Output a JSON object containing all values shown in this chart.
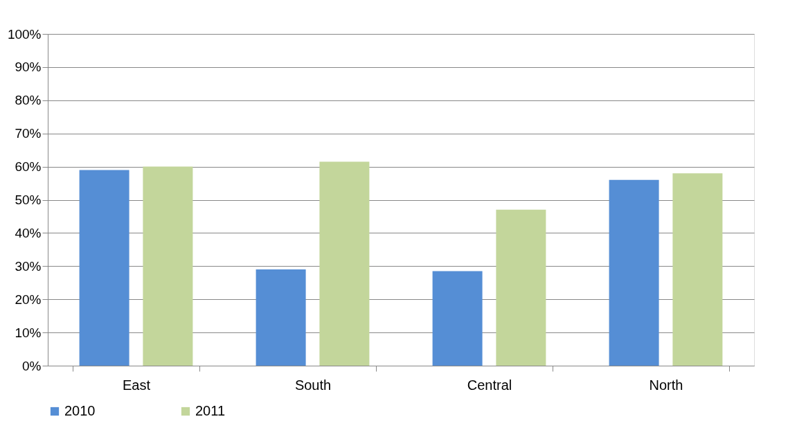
{
  "chart_data": {
    "type": "bar",
    "categories": [
      "East",
      "South",
      "Central",
      "North"
    ],
    "series": [
      {
        "name": "2010",
        "color": "#558ed5",
        "values": [
          59,
          29,
          28.5,
          56
        ]
      },
      {
        "name": "2011",
        "color": "#c3d69b",
        "values": [
          60,
          61.5,
          47,
          58
        ]
      }
    ],
    "ylim": [
      0,
      100
    ],
    "yticks": [
      {
        "value": 0,
        "label": "0%"
      },
      {
        "value": 10,
        "label": "10%"
      },
      {
        "value": 20,
        "label": "20%"
      },
      {
        "value": 30,
        "label": "30%"
      },
      {
        "value": 40,
        "label": "40%"
      },
      {
        "value": 50,
        "label": "50%"
      },
      {
        "value": 60,
        "label": "60%"
      },
      {
        "value": 70,
        "label": "70%"
      },
      {
        "value": 80,
        "label": "80%"
      },
      {
        "value": 90,
        "label": "90%"
      },
      {
        "value": 100,
        "label": "100%"
      }
    ],
    "grid": "y",
    "legend": "bottom"
  }
}
